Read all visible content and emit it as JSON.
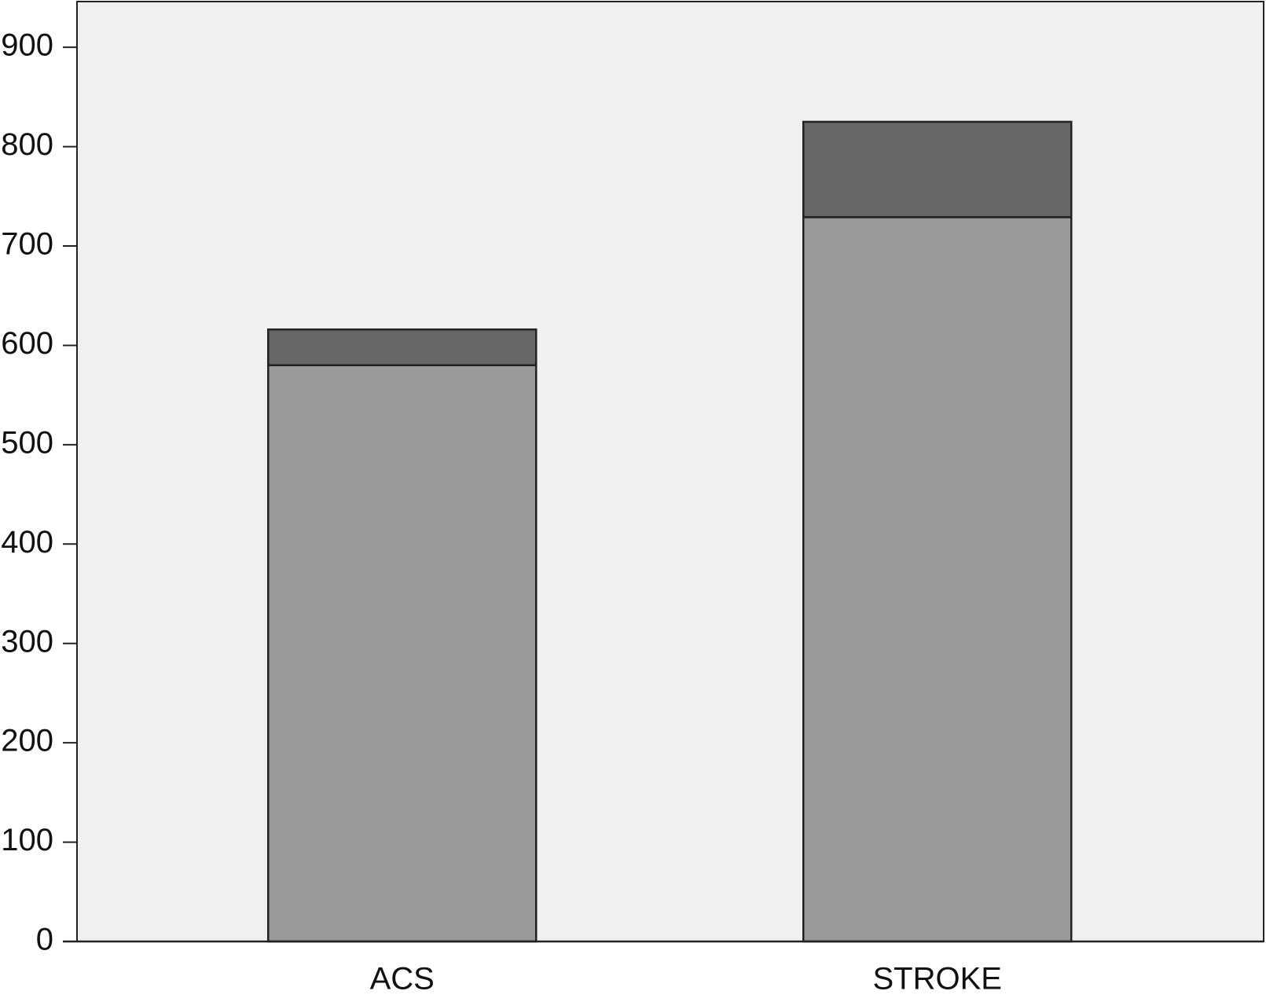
{
  "chart_data": {
    "type": "bar",
    "stacked": true,
    "categories": [
      "ACS",
      "STROKE"
    ],
    "series": [
      {
        "color": "#999999",
        "values": [
          580,
          729
        ]
      },
      {
        "color": "#666666",
        "values": [
          36,
          96
        ]
      }
    ],
    "ylim": [
      0,
      946
    ],
    "yticks": [
      0,
      100,
      200,
      300,
      400,
      500,
      600,
      700,
      800,
      900
    ],
    "grid": false,
    "plot_background": "#f0f0f0"
  }
}
